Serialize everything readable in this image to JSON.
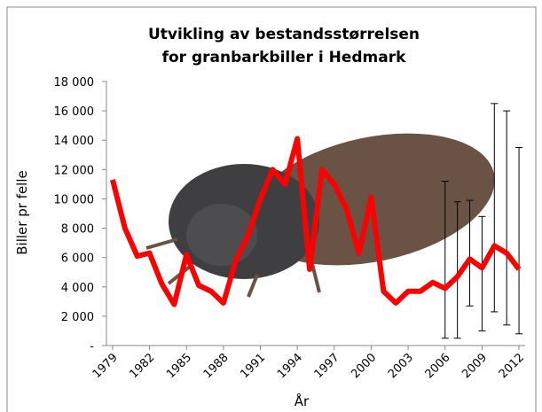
{
  "chart_data": {
    "type": "line",
    "title": [
      "Utvikling av bestandsstørrelsen",
      "for granbarkbiller i Hedmark"
    ],
    "x_label": "År",
    "y_label": "Biller pr felle",
    "x": [
      1979,
      1980,
      1981,
      1982,
      1983,
      1984,
      1985,
      1986,
      1987,
      1988,
      1989,
      1990,
      1991,
      1992,
      1993,
      1994,
      1995,
      1996,
      1997,
      1998,
      1999,
      2000,
      2001,
      2002,
      2003,
      2004,
      2005,
      2006,
      2007,
      2008,
      2009,
      2010,
      2011,
      2012
    ],
    "series": [
      {
        "color": "#ff0000",
        "values": [
          11300,
          8000,
          6100,
          6300,
          4200,
          2800,
          6200,
          4100,
          3700,
          2900,
          5800,
          7500,
          10000,
          12000,
          11000,
          14100,
          5200,
          12000,
          11000,
          9300,
          6300,
          10100,
          3700,
          2900,
          3700,
          3700,
          4300,
          3900,
          4700,
          5900,
          5300,
          6800,
          6300,
          5200
        ],
        "error_low": [
          null,
          null,
          null,
          null,
          null,
          null,
          null,
          null,
          null,
          null,
          null,
          null,
          null,
          null,
          null,
          null,
          null,
          null,
          null,
          null,
          null,
          null,
          null,
          null,
          null,
          null,
          null,
          500,
          500,
          2700,
          1000,
          2300,
          1400,
          800
        ],
        "error_high": [
          null,
          null,
          null,
          null,
          null,
          null,
          null,
          null,
          null,
          null,
          null,
          null,
          null,
          null,
          null,
          null,
          null,
          null,
          null,
          null,
          null,
          null,
          null,
          null,
          null,
          null,
          null,
          11200,
          9800,
          9900,
          8800,
          16500,
          16000,
          13500
        ]
      }
    ],
    "xlim": [
      1978.5,
      2012.5
    ],
    "xticks": [
      1979,
      1982,
      1985,
      1988,
      1991,
      1994,
      1997,
      2000,
      2003,
      2006,
      2009,
      2012
    ],
    "ylim": [
      0,
      18000
    ],
    "yticks": [
      {
        "value": 0,
        "label": "-"
      },
      {
        "value": 2000,
        "label": "2 000"
      },
      {
        "value": 4000,
        "label": "4 000"
      },
      {
        "value": 6000,
        "label": "6 000"
      },
      {
        "value": 8000,
        "label": "8 000"
      },
      {
        "value": 10000,
        "label": "10 000"
      },
      {
        "value": 12000,
        "label": "12 000"
      },
      {
        "value": 14000,
        "label": "14 000"
      },
      {
        "value": 16000,
        "label": "16 000"
      },
      {
        "value": 18000,
        "label": "18 000"
      }
    ],
    "grid": false
  }
}
